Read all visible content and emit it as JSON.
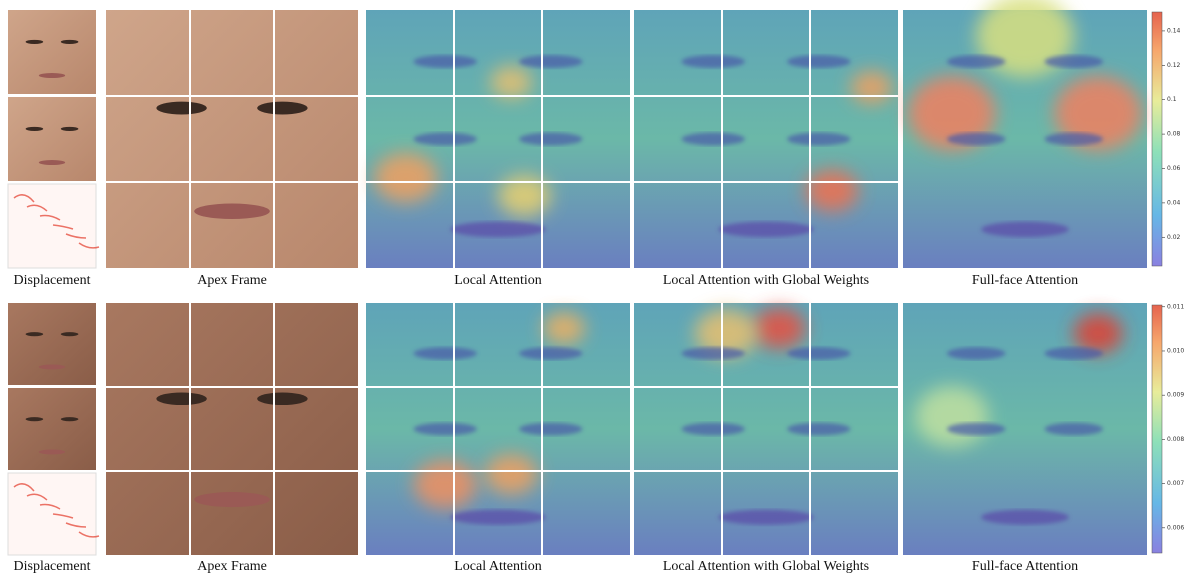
{
  "rows": [
    {
      "captions": [
        "Displacement",
        "Apex Frame",
        "Local Attention",
        "Local Attention with Global Weights",
        "Full-face Attention"
      ],
      "colorbar": {
        "clim": [
          0.0033,
          0.151
        ],
        "ticks": [
          0.02,
          0.04,
          0.06,
          0.08,
          0.1,
          0.12,
          0.14
        ]
      }
    },
    {
      "captions": [
        "Displacement",
        "Apex Frame",
        "Local Attention",
        "Local Attention with Global Weights",
        "Full-face Attention"
      ],
      "colorbar": {
        "clim": [
          0.00543,
          0.01104
        ],
        "ticks": [
          0.006,
          0.007,
          0.008,
          0.009,
          {
            "value": 0.01,
            "label": "0.010"
          },
          0.011
        ]
      }
    }
  ]
}
